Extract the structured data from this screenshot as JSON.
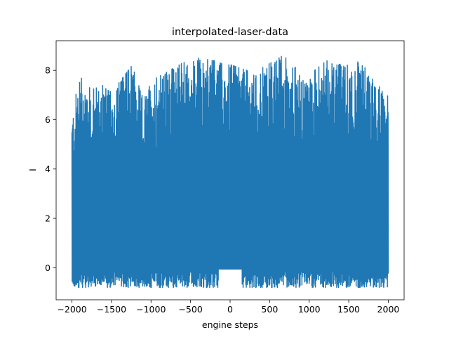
{
  "chart_data": {
    "type": "line",
    "title": "interpolated-laser-data",
    "xlabel": "engine steps",
    "ylabel": "I",
    "xlim": [
      -2200,
      2200
    ],
    "ylim": [
      -1.3,
      9.2
    ],
    "x_ticks": [
      -2000,
      -1500,
      -1000,
      -500,
      0,
      500,
      1000,
      1500,
      2000
    ],
    "x_tick_labels": [
      "−2000",
      "−1500",
      "−1000",
      "−500",
      "0",
      "500",
      "1000",
      "1500",
      "2000"
    ],
    "y_ticks": [
      0,
      2,
      4,
      6,
      8
    ],
    "y_tick_labels": [
      "0",
      "2",
      "4",
      "6",
      "8"
    ],
    "grid": false,
    "series": [
      {
        "color": "#1f77b4",
        "x_range": [
          -2000,
          2000
        ],
        "num_points": 1400,
        "envelope_peaks": [
          {
            "x": -2000,
            "y": 6.1
          },
          {
            "x": -1900,
            "y": 8.0
          },
          {
            "x": -1760,
            "y": 7.2
          },
          {
            "x": -1600,
            "y": 7.4
          },
          {
            "x": -1500,
            "y": 7.1
          },
          {
            "x": -1240,
            "y": 8.2
          },
          {
            "x": -1100,
            "y": 6.9
          },
          {
            "x": -980,
            "y": 7.6
          },
          {
            "x": -600,
            "y": 8.3
          },
          {
            "x": -390,
            "y": 8.5
          },
          {
            "x": -60,
            "y": 8.3
          },
          {
            "x": 300,
            "y": 7.9
          },
          {
            "x": 720,
            "y": 8.7
          },
          {
            "x": 920,
            "y": 7.6
          },
          {
            "x": 1220,
            "y": 8.4
          },
          {
            "x": 1320,
            "y": 8.2
          },
          {
            "x": 1630,
            "y": 8.4
          },
          {
            "x": 1860,
            "y": 7.5
          },
          {
            "x": 2000,
            "y": 7.1
          }
        ],
        "typical_min": -0.8,
        "typical_max": 8.7
      }
    ]
  }
}
